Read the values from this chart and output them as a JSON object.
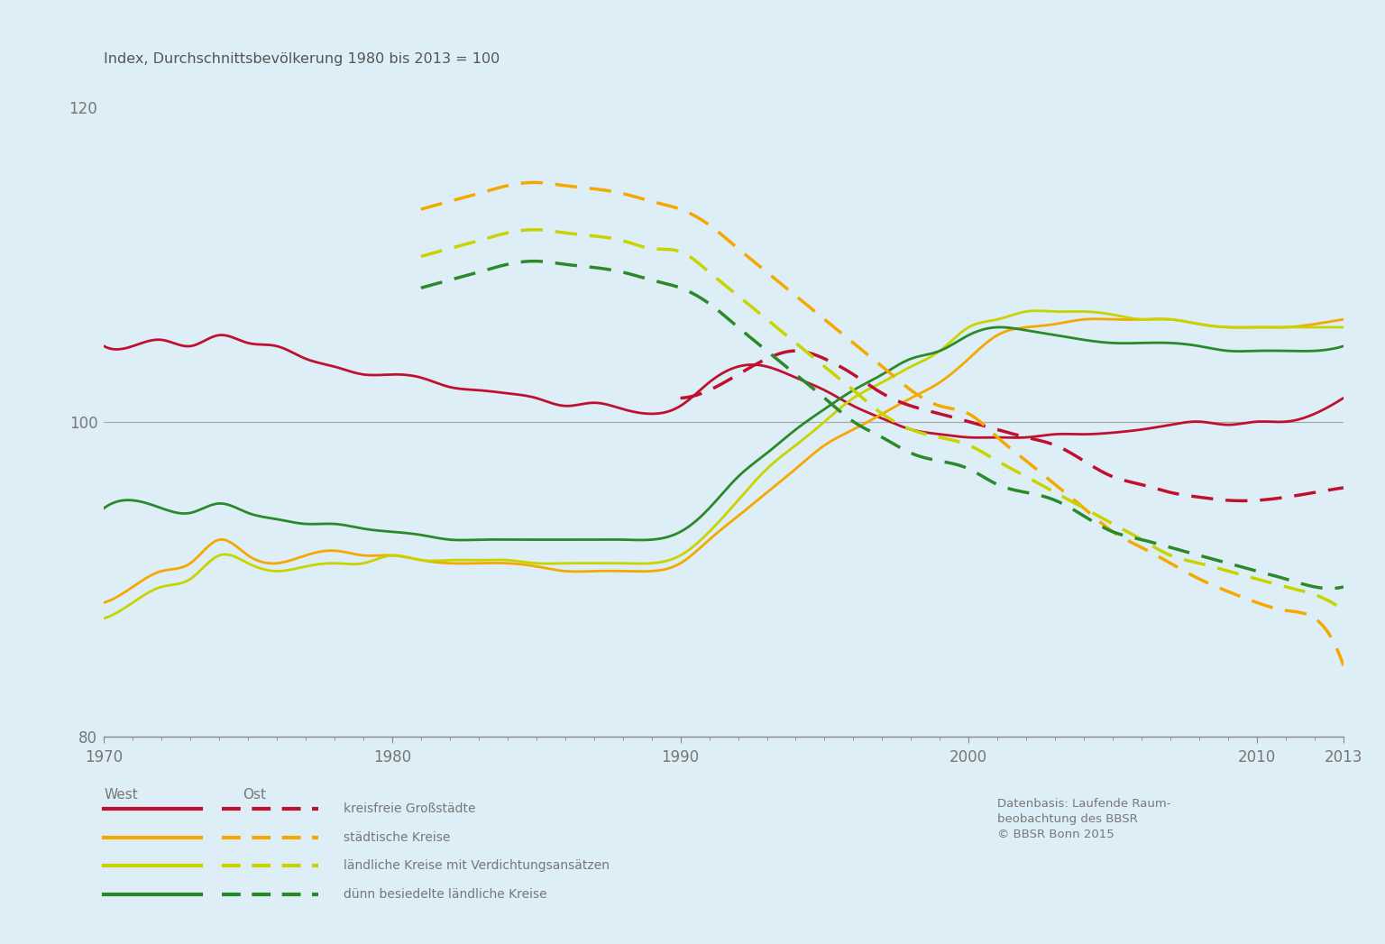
{
  "title": "Index, Durchschnittsbevölkerung 1980 bis 2013 = 100",
  "background_color": "#ddeef6",
  "ylim": [
    80,
    122
  ],
  "yticks": [
    80,
    100,
    120
  ],
  "xticks": [
    1970,
    1980,
    1990,
    2000,
    2010,
    2013
  ],
  "colors": {
    "red": "#c01030",
    "orange": "#f5a800",
    "yellow_green": "#c8d400",
    "green": "#2a8a2a"
  },
  "west_gross": {
    "years": [
      1970,
      1971,
      1972,
      1973,
      1974,
      1975,
      1976,
      1977,
      1978,
      1979,
      1980,
      1981,
      1982,
      1983,
      1984,
      1985,
      1986,
      1987,
      1988,
      1989,
      1990,
      1991,
      1992,
      1993,
      1994,
      1995,
      1996,
      1997,
      1998,
      1999,
      2000,
      2001,
      2002,
      2003,
      2004,
      2005,
      2006,
      2007,
      2008,
      2009,
      2010,
      2011,
      2012,
      2013
    ],
    "values": [
      104.8,
      104.8,
      105.2,
      104.8,
      105.5,
      105.0,
      104.8,
      104.0,
      103.5,
      103.0,
      103.0,
      102.8,
      102.2,
      102.0,
      101.8,
      101.5,
      101.0,
      101.2,
      100.8,
      100.5,
      101.0,
      102.5,
      103.5,
      103.5,
      102.8,
      102.0,
      101.0,
      100.2,
      99.5,
      99.2,
      99.0,
      99.0,
      99.0,
      99.2,
      99.2,
      99.3,
      99.5,
      99.8,
      100.0,
      99.8,
      100.0,
      100.0,
      100.5,
      101.5
    ]
  },
  "west_stadtisch": {
    "years": [
      1970,
      1971,
      1972,
      1973,
      1974,
      1975,
      1976,
      1977,
      1978,
      1979,
      1980,
      1981,
      1982,
      1983,
      1984,
      1985,
      1986,
      1987,
      1988,
      1989,
      1990,
      1991,
      1992,
      1993,
      1994,
      1995,
      1996,
      1997,
      1998,
      1999,
      2000,
      2001,
      2002,
      2003,
      2004,
      2005,
      2006,
      2007,
      2008,
      2009,
      2010,
      2011,
      2012,
      2013
    ],
    "values": [
      88.5,
      89.5,
      90.5,
      91.0,
      92.5,
      91.5,
      91.0,
      91.5,
      91.8,
      91.5,
      91.5,
      91.2,
      91.0,
      91.0,
      91.0,
      90.8,
      90.5,
      90.5,
      90.5,
      90.5,
      91.0,
      92.5,
      94.0,
      95.5,
      97.0,
      98.5,
      99.5,
      100.5,
      101.5,
      102.5,
      104.0,
      105.5,
      106.0,
      106.2,
      106.5,
      106.5,
      106.5,
      106.5,
      106.2,
      106.0,
      106.0,
      106.0,
      106.2,
      106.5
    ]
  },
  "west_laendlich_verdicht": {
    "years": [
      1970,
      1971,
      1972,
      1973,
      1974,
      1975,
      1976,
      1977,
      1978,
      1979,
      1980,
      1981,
      1982,
      1983,
      1984,
      1985,
      1986,
      1987,
      1988,
      1989,
      1990,
      1991,
      1992,
      1993,
      1994,
      1995,
      1996,
      1997,
      1998,
      1999,
      2000,
      2001,
      2002,
      2003,
      2004,
      2005,
      2006,
      2007,
      2008,
      2009,
      2010,
      2011,
      2012,
      2013
    ],
    "values": [
      87.5,
      88.5,
      89.5,
      90.0,
      91.5,
      91.0,
      90.5,
      90.8,
      91.0,
      91.0,
      91.5,
      91.2,
      91.2,
      91.2,
      91.2,
      91.0,
      91.0,
      91.0,
      91.0,
      91.0,
      91.5,
      93.0,
      95.0,
      97.0,
      98.5,
      100.0,
      101.5,
      102.5,
      103.5,
      104.5,
      106.0,
      106.5,
      107.0,
      107.0,
      107.0,
      106.8,
      106.5,
      106.5,
      106.2,
      106.0,
      106.0,
      106.0,
      106.0,
      106.0
    ]
  },
  "west_duenn": {
    "years": [
      1970,
      1971,
      1972,
      1973,
      1974,
      1975,
      1976,
      1977,
      1978,
      1979,
      1980,
      1981,
      1982,
      1983,
      1984,
      1985,
      1986,
      1987,
      1988,
      1989,
      1990,
      1991,
      1992,
      1993,
      1994,
      1995,
      1996,
      1997,
      1998,
      1999,
      2000,
      2001,
      2002,
      2003,
      2004,
      2005,
      2006,
      2007,
      2008,
      2009,
      2010,
      2011,
      2012,
      2013
    ],
    "values": [
      94.5,
      95.0,
      94.5,
      94.2,
      94.8,
      94.2,
      93.8,
      93.5,
      93.5,
      93.2,
      93.0,
      92.8,
      92.5,
      92.5,
      92.5,
      92.5,
      92.5,
      92.5,
      92.5,
      92.5,
      93.0,
      94.5,
      96.5,
      98.0,
      99.5,
      100.8,
      102.0,
      103.0,
      104.0,
      104.5,
      105.5,
      106.0,
      105.8,
      105.5,
      105.2,
      105.0,
      105.0,
      105.0,
      104.8,
      104.5,
      104.5,
      104.5,
      104.5,
      104.8
    ]
  },
  "ost_gross": {
    "years": [
      1990,
      1991,
      1992,
      1993,
      1994,
      1995,
      1996,
      1997,
      1998,
      1999,
      2000,
      2001,
      2002,
      2003,
      2004,
      2005,
      2006,
      2007,
      2008,
      2009,
      2010,
      2011,
      2012,
      2013
    ],
    "values": [
      101.5,
      102.0,
      103.0,
      104.0,
      104.5,
      104.0,
      103.0,
      101.8,
      101.0,
      100.5,
      100.0,
      99.5,
      99.0,
      98.5,
      97.5,
      96.5,
      96.0,
      95.5,
      95.2,
      95.0,
      95.0,
      95.2,
      95.5,
      95.8
    ]
  },
  "ost_stadtisch": {
    "years": [
      1981,
      1982,
      1983,
      1984,
      1985,
      1986,
      1987,
      1988,
      1989,
      1990,
      1991,
      1992,
      1993,
      1994,
      1995,
      1996,
      1997,
      1998,
      1999,
      2000,
      2001,
      2002,
      2003,
      2004,
      2005,
      2006,
      2007,
      2008,
      2009,
      2010,
      2011,
      2012,
      2013
    ],
    "values": [
      113.5,
      114.0,
      114.5,
      115.0,
      115.2,
      115.0,
      114.8,
      114.5,
      114.0,
      113.5,
      112.5,
      111.0,
      109.5,
      108.0,
      106.5,
      105.0,
      103.5,
      102.0,
      101.0,
      100.5,
      99.0,
      97.5,
      96.0,
      94.5,
      93.0,
      92.0,
      91.0,
      90.0,
      89.2,
      88.5,
      88.0,
      87.5,
      84.5
    ]
  },
  "ost_laendlich_verdicht": {
    "years": [
      1981,
      1982,
      1983,
      1984,
      1985,
      1986,
      1987,
      1988,
      1989,
      1990,
      1991,
      1992,
      1993,
      1994,
      1995,
      1996,
      1997,
      1998,
      1999,
      2000,
      2001,
      2002,
      2003,
      2004,
      2005,
      2006,
      2007,
      2008,
      2009,
      2010,
      2011,
      2012,
      2013
    ],
    "values": [
      110.5,
      111.0,
      111.5,
      112.0,
      112.2,
      112.0,
      111.8,
      111.5,
      111.0,
      110.8,
      109.5,
      108.0,
      106.5,
      105.0,
      103.5,
      102.0,
      100.5,
      99.5,
      99.0,
      98.5,
      97.5,
      96.5,
      95.5,
      94.5,
      93.5,
      92.5,
      91.5,
      91.0,
      90.5,
      90.0,
      89.5,
      89.0,
      88.0
    ]
  },
  "ost_duenn": {
    "years": [
      1981,
      1982,
      1983,
      1984,
      1985,
      1986,
      1987,
      1988,
      1989,
      1990,
      1991,
      1992,
      1993,
      1994,
      1995,
      1996,
      1997,
      1998,
      1999,
      2000,
      2001,
      2002,
      2003,
      2004,
      2005,
      2006,
      2007,
      2008,
      2009,
      2010,
      2011,
      2012,
      2013
    ],
    "values": [
      108.5,
      109.0,
      109.5,
      110.0,
      110.2,
      110.0,
      109.8,
      109.5,
      109.0,
      108.5,
      107.5,
      106.0,
      104.5,
      103.0,
      101.5,
      100.0,
      99.0,
      98.0,
      97.5,
      97.0,
      96.0,
      95.5,
      95.0,
      94.0,
      93.0,
      92.5,
      92.0,
      91.5,
      91.0,
      90.5,
      90.0,
      89.5,
      89.5
    ]
  },
  "legend": {
    "west_label": "West",
    "ost_label": "Ost",
    "items": [
      "kreisfreie Großstädte",
      "städtische Kreise",
      "ländliche Kreise mit Verdichtungsansätzen",
      "dünn besiedelte ländliche Kreise"
    ]
  },
  "source_text": "Datenbasis: Laufende Raum-\nbeobachtung des BBSR\n© BBSR Bonn 2015"
}
